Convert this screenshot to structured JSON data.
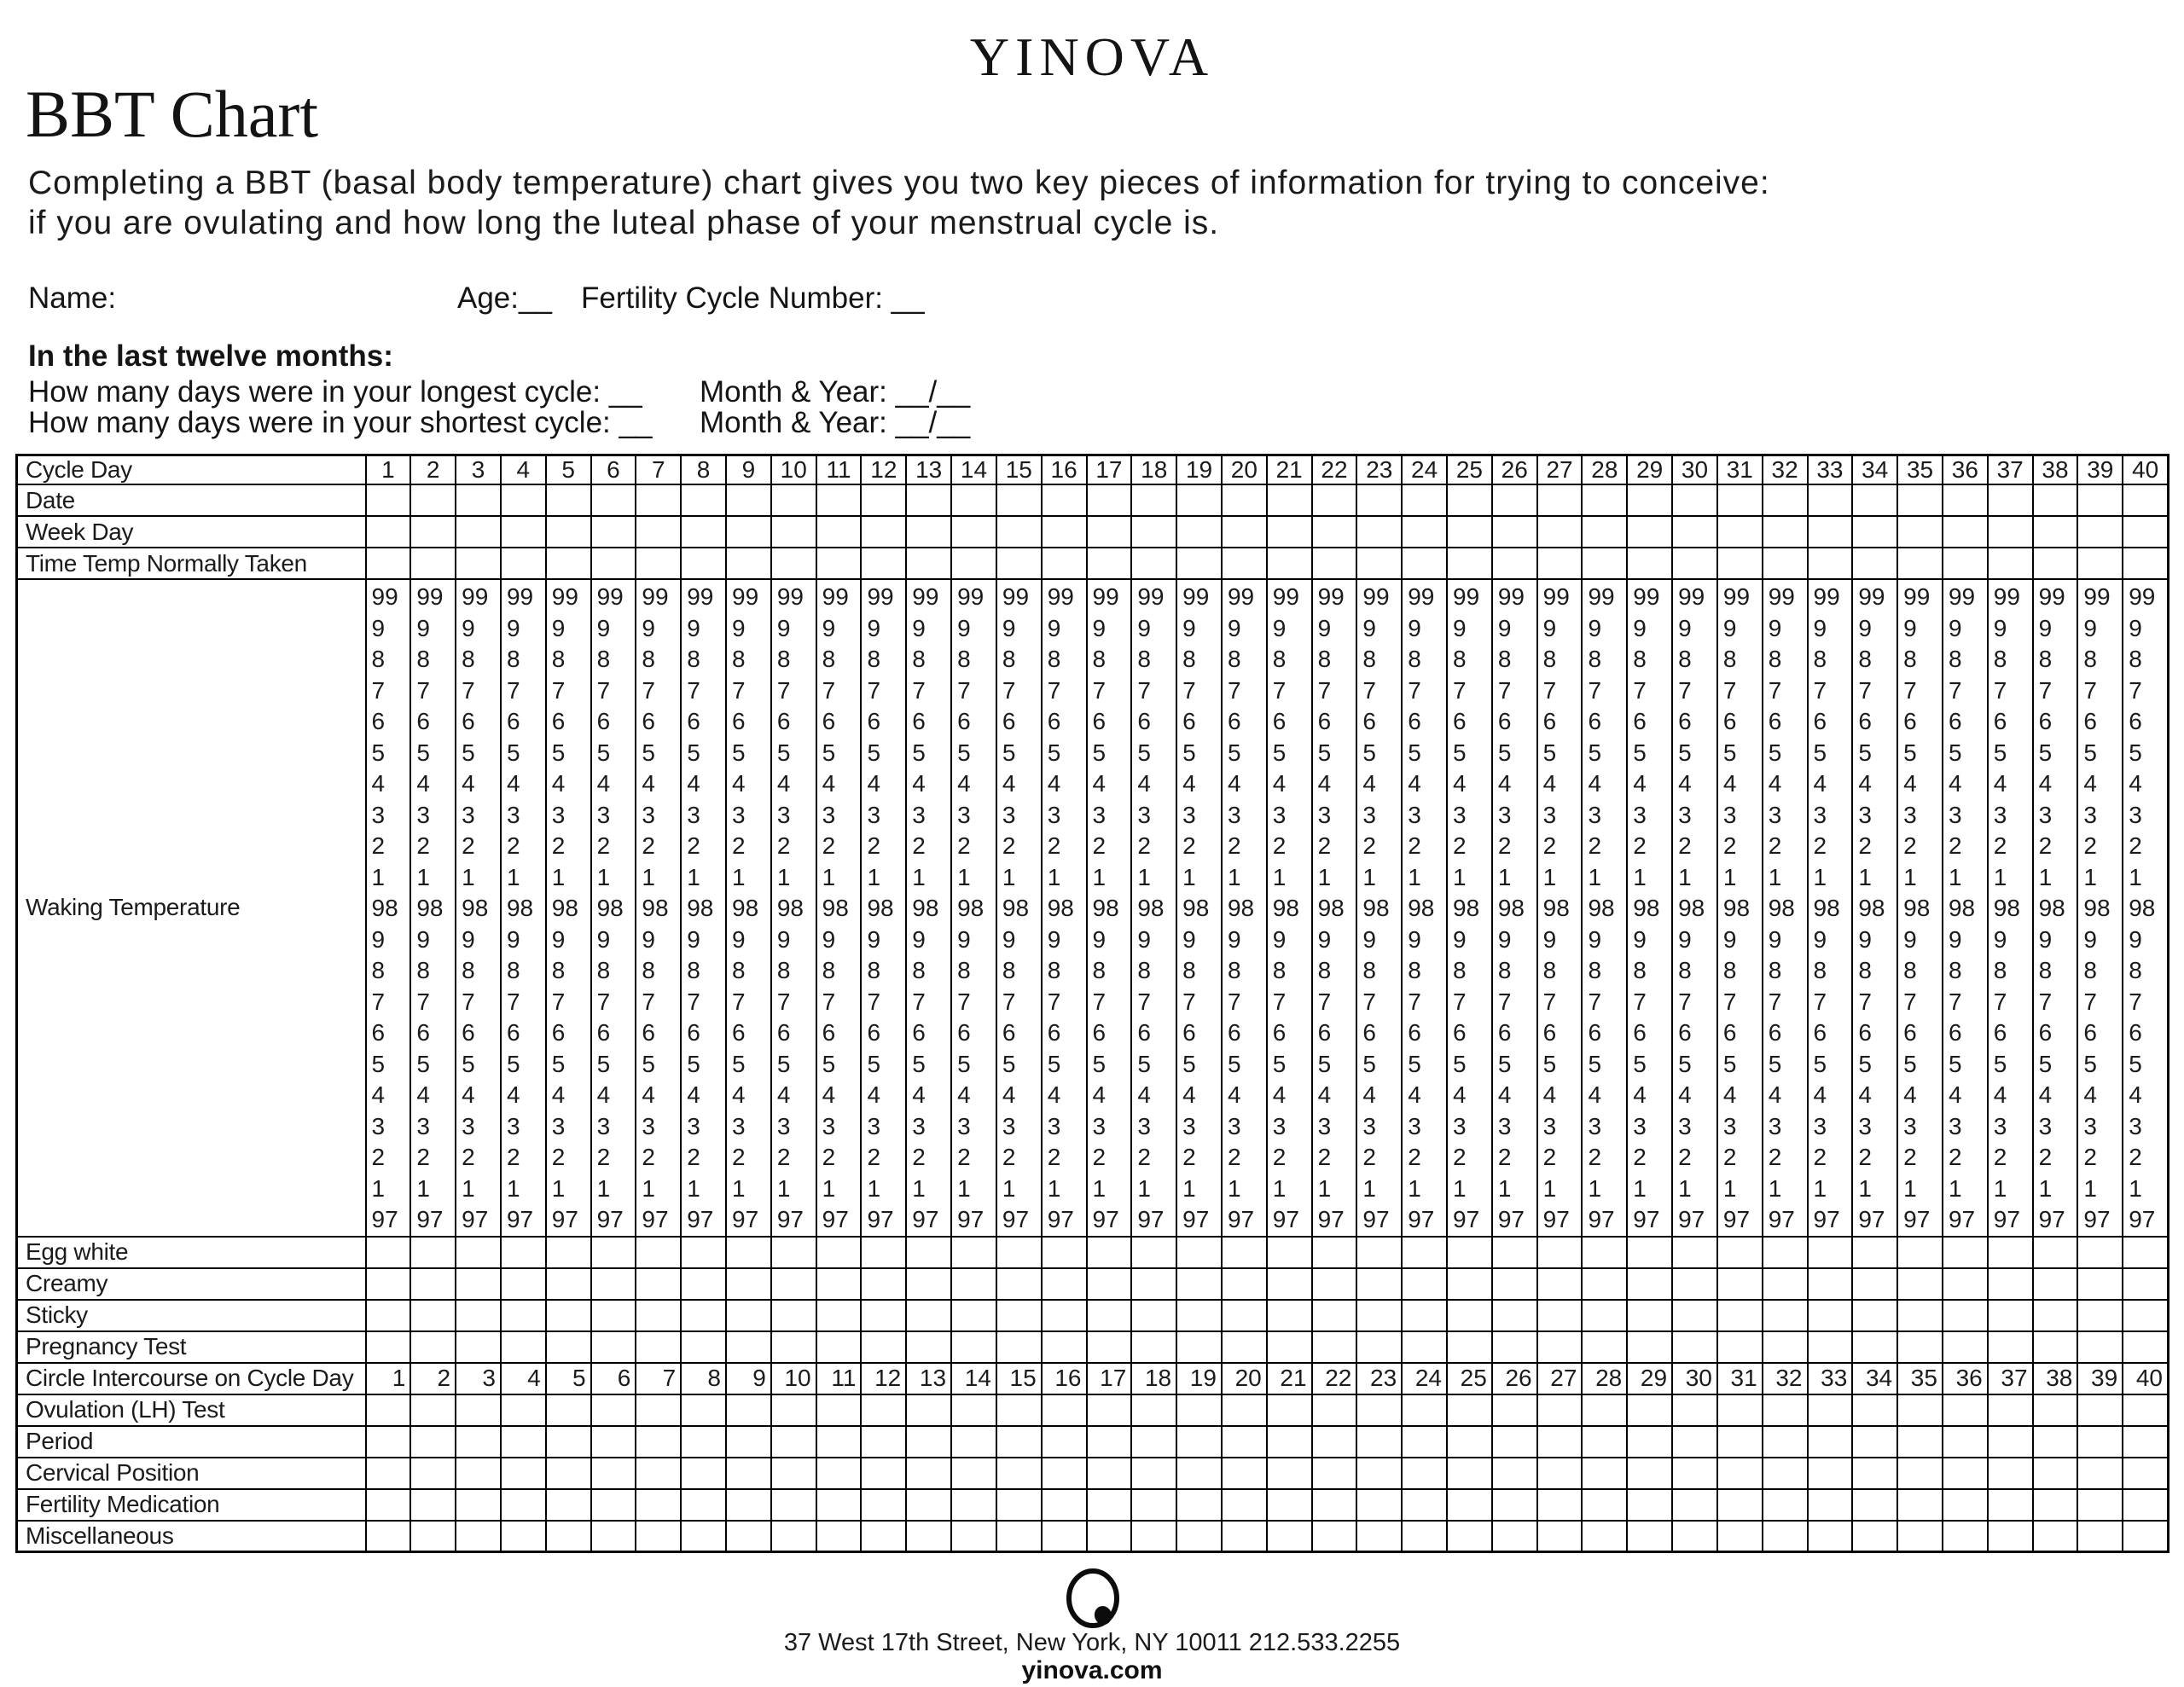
{
  "colors": {
    "ink": "#151515",
    "paper": "#ffffff"
  },
  "brand": {
    "wordmark": "YINOVA",
    "logo": "yinova-circle-dot-logo"
  },
  "page": {
    "title": "BBT Chart",
    "intro_line1": "Completing a BBT (basal body temperature) chart gives you two key pieces of information for trying to conceive:",
    "intro_line2": "if you are ovulating and how long the luteal phase of your menstrual cycle is."
  },
  "patient_fields": {
    "name": "Name:",
    "age": "Age:__",
    "fertility_cycle_number": "Fertility Cycle Number: __"
  },
  "history": {
    "heading": "In the last twelve months:",
    "longest_question": "How many days were in your longest cycle: __",
    "longest_month_year": "Month & Year: __/__",
    "shortest_question": "How many days were in your shortest cycle: __",
    "shortest_month_year": "Month & Year: __/__"
  },
  "chart_table": {
    "header_row_label": "Cycle Day",
    "days": [
      1,
      2,
      3,
      4,
      5,
      6,
      7,
      8,
      9,
      10,
      11,
      12,
      13,
      14,
      15,
      16,
      17,
      18,
      19,
      20,
      21,
      22,
      23,
      24,
      25,
      26,
      27,
      28,
      29,
      30,
      31,
      32,
      33,
      34,
      35,
      36,
      37,
      38,
      39,
      40
    ],
    "rows_before_temperature": [
      "Date",
      "Week Day",
      "Time Temp Normally Taken"
    ],
    "temperature_row_label": "Waking Temperature",
    "temperature_scale": [
      "99",
      "9",
      "8",
      "7",
      "6",
      "5",
      "4",
      "3",
      "2",
      "1",
      "98",
      "9",
      "8",
      "7",
      "6",
      "5",
      "4",
      "3",
      "2",
      "1",
      "97"
    ],
    "rows_after_temperature": [
      "Egg white",
      "Creamy",
      "Sticky",
      "Pregnancy Test"
    ],
    "intercourse_row_label": "Circle Intercourse on Cycle Day",
    "bottom_rows": [
      "Ovulation (LH) Test",
      "Period",
      "Cervical Position",
      "Fertility Medication",
      "Miscellaneous"
    ]
  },
  "footer": {
    "address": "37 West 17th Street, New York, NY 10011 212.533.2255",
    "website": "yinova.com"
  }
}
